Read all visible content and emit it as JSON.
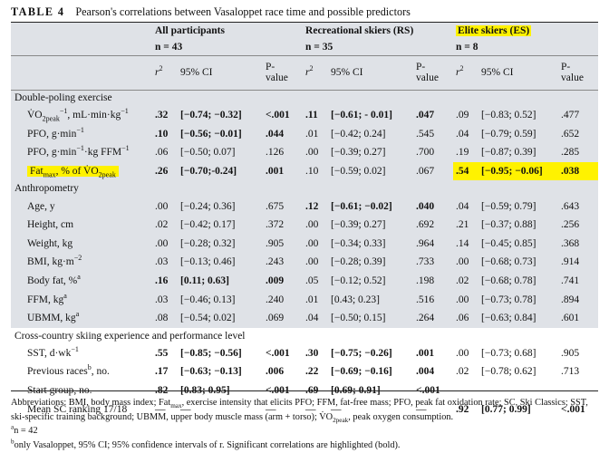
{
  "caption": {
    "label": "TABLE 4",
    "title": "Pearson's correlations between Vasaloppet race time and possible predictors"
  },
  "groups": [
    {
      "name": "All participants",
      "n": "n = 43",
      "highlight": false
    },
    {
      "name": "Recreational skiers (RS)",
      "n": "n = 35",
      "highlight": false
    },
    {
      "name": "Elite skiers (ES)",
      "n": "n = 8",
      "highlight": true
    }
  ],
  "col_headers": {
    "r2": "r",
    "r2_sup": "2",
    "ci": "95% CI",
    "p_line1": "P-",
    "p_line2": "value"
  },
  "sections": [
    {
      "title": "Double-poling exercise",
      "shaded": true,
      "rows": [
        {
          "label": "V̇O",
          "label_sub": "2peak",
          "label_rest": ", mL·min",
          "label_sup": "−1",
          "label_rest2": "·kg",
          "label_sup2": "−1",
          "highlight": false,
          "cells": [
            {
              "v": ".32",
              "b": true
            },
            {
              "v": "[−0.74; −0.32]",
              "b": true
            },
            {
              "v": "<.001",
              "b": true
            },
            {
              "v": ".11",
              "b": true
            },
            {
              "v": "[−0.61; - 0.01]",
              "b": true
            },
            {
              "v": ".047",
              "b": true
            },
            {
              "v": ".09",
              "b": false
            },
            {
              "v": "[−0.83; 0.52]",
              "b": false
            },
            {
              "v": ".477",
              "b": false
            }
          ]
        },
        {
          "label": "PFO, g·min",
          "label_sup": "−1",
          "highlight": false,
          "cells": [
            {
              "v": ".10",
              "b": true
            },
            {
              "v": "[−0.56; −0.01]",
              "b": true
            },
            {
              "v": ".044",
              "b": true
            },
            {
              "v": ".01",
              "b": false
            },
            {
              "v": "[−0.42; 0.24]",
              "b": false
            },
            {
              "v": ".545",
              "b": false
            },
            {
              "v": ".04",
              "b": false
            },
            {
              "v": "[−0.79; 0.59]",
              "b": false
            },
            {
              "v": ".652",
              "b": false
            }
          ]
        },
        {
          "label": "PFO, g·min",
          "label_sup": "−1",
          "label_rest": "·kg FFM",
          "label_sup2": "−1",
          "highlight": false,
          "cells": [
            {
              "v": ".06",
              "b": false
            },
            {
              "v": "[−0.50; 0.07]",
              "b": false
            },
            {
              "v": ".126",
              "b": false
            },
            {
              "v": ".00",
              "b": false
            },
            {
              "v": "[−0.39; 0.27]",
              "b": false
            },
            {
              "v": ".700",
              "b": false
            },
            {
              "v": ".19",
              "b": false
            },
            {
              "v": "[−0.87; 0.39]",
              "b": false
            },
            {
              "v": ".285",
              "b": false
            }
          ]
        },
        {
          "label": "Fat",
          "label_sub": "max",
          "label_rest": ", % of V̇O",
          "label_sub2": "2peak",
          "highlight": true,
          "cells": [
            {
              "v": ".26",
              "b": true
            },
            {
              "v": "[−0.70;-0.24]",
              "b": true
            },
            {
              "v": ".001",
              "b": true
            },
            {
              "v": ".10",
              "b": false
            },
            {
              "v": "[−0.59; 0.02]",
              "b": false
            },
            {
              "v": ".067",
              "b": false
            },
            {
              "v": ".54",
              "b": true,
              "h": true
            },
            {
              "v": "[−0.95; −0.06]",
              "b": true,
              "h": true
            },
            {
              "v": ".038",
              "b": true,
              "h": true
            }
          ]
        }
      ]
    },
    {
      "title": "Anthropometry",
      "shaded": true,
      "rows": [
        {
          "label": "Age, y",
          "cells": [
            {
              "v": ".00"
            },
            {
              "v": "[−0.24; 0.36]"
            },
            {
              "v": ".675"
            },
            {
              "v": ".12",
              "b": true
            },
            {
              "v": "[−0.61; −0.02]",
              "b": true
            },
            {
              "v": ".040",
              "b": true
            },
            {
              "v": ".04"
            },
            {
              "v": "[−0.59; 0.79]"
            },
            {
              "v": ".643"
            }
          ]
        },
        {
          "label": "Height, cm",
          "cells": [
            {
              "v": ".02"
            },
            {
              "v": "[−0.42; 0.17]"
            },
            {
              "v": ".372"
            },
            {
              "v": ".00"
            },
            {
              "v": "[−0.39; 0.27]"
            },
            {
              "v": ".692"
            },
            {
              "v": ".21"
            },
            {
              "v": "[−0.37; 0.88]"
            },
            {
              "v": ".256"
            }
          ]
        },
        {
          "label": "Weight, kg",
          "cells": [
            {
              "v": ".00"
            },
            {
              "v": "[−0.28; 0.32]"
            },
            {
              "v": ".905"
            },
            {
              "v": ".00"
            },
            {
              "v": "[−0.34; 0.33]"
            },
            {
              "v": ".964"
            },
            {
              "v": ".14"
            },
            {
              "v": "[−0.45; 0.85]"
            },
            {
              "v": ".368"
            }
          ]
        },
        {
          "label": "BMI, kg·m",
          "label_sup": "−2",
          "cells": [
            {
              "v": ".03"
            },
            {
              "v": "[−0.13; 0.46]"
            },
            {
              "v": ".243"
            },
            {
              "v": ".00"
            },
            {
              "v": "[−0.28; 0.39]"
            },
            {
              "v": ".733"
            },
            {
              "v": ".00"
            },
            {
              "v": "[−0.68; 0.73]"
            },
            {
              "v": ".914"
            }
          ]
        },
        {
          "label": "Body fat, %",
          "label_sup": "a",
          "cells": [
            {
              "v": ".16",
              "b": true
            },
            {
              "v": "[0.11; 0.63]",
              "b": true
            },
            {
              "v": ".009",
              "b": true
            },
            {
              "v": ".05"
            },
            {
              "v": "[−0.12; 0.52]"
            },
            {
              "v": ".198"
            },
            {
              "v": ".02"
            },
            {
              "v": "[−0.68; 0.78]"
            },
            {
              "v": ".741"
            }
          ]
        },
        {
          "label": "FFM, kg",
          "label_sup": "a",
          "cells": [
            {
              "v": ".03"
            },
            {
              "v": "[−0.46; 0.13]"
            },
            {
              "v": ".240"
            },
            {
              "v": ".01"
            },
            {
              "v": "[0.43; 0.23]"
            },
            {
              "v": ".516"
            },
            {
              "v": ".00"
            },
            {
              "v": "[−0.73; 0.78]"
            },
            {
              "v": ".894"
            }
          ]
        },
        {
          "label": "UBMM, kg",
          "label_sup": "a",
          "cells": [
            {
              "v": ".08"
            },
            {
              "v": "[−0.54; 0.02]"
            },
            {
              "v": ".069"
            },
            {
              "v": ".04"
            },
            {
              "v": "[−0.50; 0.15]"
            },
            {
              "v": ".264"
            },
            {
              "v": ".06"
            },
            {
              "v": "[−0.63; 0.84]"
            },
            {
              "v": ".601"
            }
          ]
        }
      ]
    },
    {
      "title": "Cross-country skiing experience and performance level",
      "shaded": false,
      "rows": [
        {
          "label": "SST, d·wk",
          "label_sup": "−1",
          "cells": [
            {
              "v": ".55",
              "b": true
            },
            {
              "v": "[−0.85; −0.56]",
              "b": true
            },
            {
              "v": "<.001",
              "b": true
            },
            {
              "v": ".30",
              "b": true
            },
            {
              "v": "[−0.75; −0.26]",
              "b": true
            },
            {
              "v": ".001",
              "b": true
            },
            {
              "v": ".00"
            },
            {
              "v": "[−0.73; 0.68]"
            },
            {
              "v": ".905"
            }
          ]
        },
        {
          "label": "Previous races",
          "label_sup": "b",
          "label_rest": ", no.",
          "cells": [
            {
              "v": ".17",
              "b": true
            },
            {
              "v": "[−0.63; −0.13]",
              "b": true
            },
            {
              "v": ".006",
              "b": true
            },
            {
              "v": ".22",
              "b": true
            },
            {
              "v": "[−0.69; −0.16]",
              "b": true
            },
            {
              "v": ".004",
              "b": true
            },
            {
              "v": ".02"
            },
            {
              "v": "[−0.78; 0.62]"
            },
            {
              "v": ".713"
            }
          ]
        },
        {
          "label": "Start group, no.",
          "cells": [
            {
              "v": ".82",
              "b": true
            },
            {
              "v": "[0.83; 0.95]",
              "b": true
            },
            {
              "v": "<.001",
              "b": true
            },
            {
              "v": ".69",
              "b": true
            },
            {
              "v": "[0.69; 0.91]",
              "b": true
            },
            {
              "v": "<.001",
              "b": true
            },
            {
              "v": "—"
            },
            {
              "v": "—"
            },
            {
              "v": "—"
            }
          ]
        },
        {
          "label": "Mean SC ranking 17/18",
          "cells": [
            {
              "v": "—"
            },
            {
              "v": "—"
            },
            {
              "v": "—"
            },
            {
              "v": "—"
            },
            {
              "v": "—"
            },
            {
              "v": "—"
            },
            {
              "v": ".92",
              "b": true
            },
            {
              "v": "[0.77; 0.99]",
              "b": true
            },
            {
              "v": "<.001",
              "b": true
            }
          ]
        }
      ]
    }
  ],
  "footnotes": {
    "abbrev_a": "Abbreviations: BMI, body mass index; Fat",
    "abbrev_sub": "max",
    "abbrev_b": ", exercise intensity that elicits PFO; FFM, fat-free mass; PFO, peak fat oxidation rate; SC, Ski Classics; SST, ski-specific training background; UBMM, upper body muscle mass (arm + torso); V̇O",
    "abbrev_sub2": "2peak",
    "abbrev_c": ", peak oxygen consumption.",
    "note_a_mark": "a",
    "note_a": "n = 42",
    "note_b_mark": "b",
    "note_b": "only Vasaloppet, 95% CI; 95% confidence intervals of r. Significant correlations are highlighted (bold)."
  },
  "colors": {
    "shade": "#dfe2e7",
    "highlight": "#fff200"
  }
}
